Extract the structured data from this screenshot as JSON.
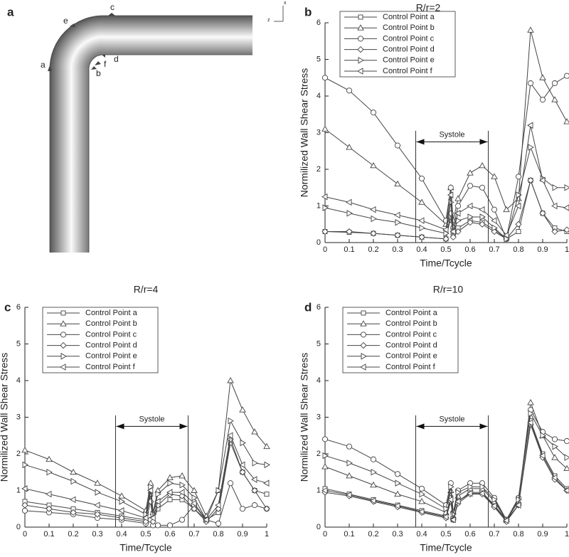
{
  "diagram": {
    "panel": "a",
    "points": [
      "a",
      "b",
      "c",
      "d",
      "e",
      "f"
    ],
    "axes": [
      "z",
      "x"
    ]
  },
  "chart_data": [
    {
      "type": "line",
      "panel": "b",
      "title": "R/r=2",
      "x_label": "Time/Tcycle",
      "y_label": "Normilized Wall Shear Stress",
      "xlim": [
        0,
        1
      ],
      "ylim": [
        0,
        6
      ],
      "xticks": [
        0,
        0.1,
        0.2,
        0.3,
        0.4,
        0.5,
        0.6,
        0.7,
        0.8,
        0.9,
        1
      ],
      "yticks": [
        0,
        1,
        2,
        3,
        4,
        5,
        6
      ],
      "legend": "upper left",
      "annotation": {
        "text": "Systole",
        "x0": 0.375,
        "x1": 0.675,
        "top": 3.05,
        "arrow_y": 2.75
      },
      "x": [
        0,
        0.1,
        0.2,
        0.3,
        0.4,
        0.5,
        0.52,
        0.53,
        0.55,
        0.6,
        0.65,
        0.7,
        0.75,
        0.8,
        0.85,
        0.9,
        0.95,
        1
      ],
      "series": [
        {
          "name": "Control Point a",
          "marker": "square",
          "color": "#444",
          "values": [
            0.3,
            0.28,
            0.25,
            0.2,
            0.15,
            0.1,
            0.7,
            0.2,
            0.4,
            0.6,
            0.55,
            0.35,
            0.1,
            0.3,
            1.7,
            0.8,
            0.4,
            0.3
          ]
        },
        {
          "name": "Control Point b",
          "marker": "triangle-up",
          "color": "#444",
          "values": [
            3.1,
            2.6,
            2.1,
            1.6,
            1.1,
            0.5,
            1.5,
            0.6,
            1.2,
            1.9,
            2.1,
            1.8,
            0.9,
            1.2,
            5.8,
            4.5,
            3.9,
            3.3
          ]
        },
        {
          "name": "Control Point c",
          "marker": "circle",
          "color": "#444",
          "values": [
            4.5,
            4.15,
            3.55,
            2.65,
            1.75,
            0.6,
            1.5,
            0.4,
            1.0,
            1.55,
            1.5,
            0.9,
            0.1,
            1.8,
            4.35,
            3.9,
            4.35,
            4.55
          ]
        },
        {
          "name": "Control Point d",
          "marker": "diamond",
          "color": "#444",
          "values": [
            0.3,
            0.3,
            0.25,
            0.2,
            0.15,
            0.1,
            0.8,
            0.15,
            0.3,
            0.55,
            0.5,
            0.3,
            0.1,
            0.5,
            1.7,
            0.8,
            0.3,
            0.35
          ]
        },
        {
          "name": "Control Point e",
          "marker": "triangle-right",
          "color": "#444",
          "values": [
            0.95,
            0.8,
            0.65,
            0.55,
            0.4,
            0.25,
            1.1,
            0.3,
            0.6,
            0.7,
            0.7,
            0.4,
            0.1,
            1.3,
            2.6,
            1.75,
            1.5,
            1.5
          ]
        },
        {
          "name": "Control Point f",
          "marker": "triangle-left",
          "color": "#444",
          "values": [
            1.25,
            1.1,
            0.9,
            0.75,
            0.6,
            0.35,
            1.3,
            0.3,
            0.8,
            1.0,
            0.9,
            0.6,
            0.2,
            1.0,
            3.2,
            1.7,
            1.0,
            0.95
          ]
        }
      ]
    },
    {
      "type": "line",
      "panel": "c",
      "title": "R/r=4",
      "x_label": "Time/Tcycle",
      "y_label": "Normilized Wall Shear Stress",
      "xlim": [
        0,
        1
      ],
      "ylim": [
        0,
        6
      ],
      "xticks": [
        0,
        0.1,
        0.2,
        0.3,
        0.4,
        0.5,
        0.6,
        0.7,
        0.8,
        0.9,
        1
      ],
      "yticks": [
        0,
        1,
        2,
        3,
        4,
        5,
        6
      ],
      "legend": "upper left",
      "annotation": {
        "text": "Systole",
        "x0": 0.375,
        "x1": 0.675,
        "top": 3.05,
        "arrow_y": 2.75
      },
      "x": [
        0,
        0.1,
        0.2,
        0.3,
        0.4,
        0.5,
        0.52,
        0.53,
        0.55,
        0.6,
        0.65,
        0.7,
        0.75,
        0.8,
        0.85,
        0.9,
        0.95,
        1
      ],
      "series": [
        {
          "name": "Control Point a",
          "marker": "square",
          "color": "#444",
          "values": [
            0.7,
            0.6,
            0.5,
            0.4,
            0.3,
            0.2,
            0.9,
            0.2,
            0.5,
            0.75,
            0.75,
            0.5,
            0.2,
            0.4,
            2.3,
            1.5,
            1.0,
            0.9
          ]
        },
        {
          "name": "Control Point b",
          "marker": "triangle-up",
          "color": "#444",
          "values": [
            2.1,
            1.85,
            1.5,
            1.2,
            0.85,
            0.45,
            1.2,
            0.4,
            1.0,
            1.35,
            1.4,
            1.0,
            0.3,
            1.0,
            4.0,
            3.2,
            2.6,
            2.2
          ]
        },
        {
          "name": "Control Point c",
          "marker": "circle",
          "color": "#444",
          "values": [
            0.45,
            0.4,
            0.35,
            0.25,
            0.2,
            0.1,
            0.2,
            0.05,
            0.05,
            0.05,
            0.2,
            0.6,
            0.2,
            0.1,
            1.2,
            0.5,
            0.6,
            0.5
          ]
        },
        {
          "name": "Control Point d",
          "marker": "diamond",
          "color": "#444",
          "values": [
            0.6,
            0.5,
            0.4,
            0.35,
            0.25,
            0.15,
            0.7,
            0.15,
            0.6,
            0.9,
            0.85,
            0.5,
            0.15,
            0.5,
            2.4,
            1.5,
            1.0,
            0.5
          ]
        },
        {
          "name": "Control Point e",
          "marker": "triangle-right",
          "color": "#444",
          "values": [
            1.7,
            1.5,
            1.25,
            0.95,
            0.7,
            0.35,
            1.1,
            0.35,
            0.9,
            1.2,
            1.15,
            0.8,
            0.2,
            1.0,
            2.9,
            2.3,
            1.75,
            1.7
          ]
        },
        {
          "name": "Control Point f",
          "marker": "triangle-left",
          "color": "#444",
          "values": [
            1.05,
            0.9,
            0.75,
            0.6,
            0.45,
            0.25,
            1.0,
            0.25,
            0.7,
            0.95,
            0.95,
            0.65,
            0.2,
            0.6,
            2.5,
            1.7,
            1.3,
            1.2
          ]
        }
      ]
    },
    {
      "type": "line",
      "panel": "d",
      "title": "R/r=10",
      "x_label": "Time/Tcycle",
      "y_label": "Normilized Wall Shear Stress",
      "xlim": [
        0,
        1
      ],
      "ylim": [
        0,
        6
      ],
      "xticks": [
        0,
        0.1,
        0.2,
        0.3,
        0.4,
        0.5,
        0.6,
        0.7,
        0.8,
        0.9,
        1
      ],
      "yticks": [
        0,
        1,
        2,
        3,
        4,
        5,
        6
      ],
      "legend": "upper left",
      "annotation": {
        "text": "Systole",
        "x0": 0.375,
        "x1": 0.675,
        "top": 3.05,
        "arrow_y": 2.75
      },
      "x": [
        0,
        0.1,
        0.2,
        0.3,
        0.4,
        0.5,
        0.52,
        0.53,
        0.55,
        0.6,
        0.65,
        0.7,
        0.75,
        0.8,
        0.85,
        0.9,
        0.95,
        1
      ],
      "series": [
        {
          "name": "Control Point a",
          "marker": "square",
          "color": "#444",
          "values": [
            1.05,
            0.9,
            0.75,
            0.6,
            0.45,
            0.3,
            0.8,
            0.2,
            0.7,
            0.95,
            0.95,
            0.6,
            0.2,
            0.6,
            2.9,
            2.0,
            1.4,
            1.05
          ]
        },
        {
          "name": "Control Point b",
          "marker": "triangle-up",
          "color": "#444",
          "values": [
            1.65,
            1.4,
            1.15,
            0.9,
            0.7,
            0.4,
            1.0,
            0.3,
            0.85,
            1.05,
            1.05,
            0.7,
            0.2,
            0.7,
            3.4,
            2.5,
            1.9,
            1.6
          ]
        },
        {
          "name": "Control Point c",
          "marker": "circle",
          "color": "#444",
          "values": [
            2.4,
            2.2,
            1.85,
            1.45,
            1.05,
            0.6,
            1.2,
            0.4,
            1.0,
            1.2,
            1.2,
            0.8,
            0.2,
            0.8,
            3.2,
            2.6,
            2.4,
            2.35
          ]
        },
        {
          "name": "Control Point d",
          "marker": "diamond",
          "color": "#444",
          "values": [
            0.95,
            0.85,
            0.7,
            0.55,
            0.4,
            0.25,
            0.7,
            0.2,
            0.65,
            0.9,
            0.9,
            0.55,
            0.15,
            0.6,
            2.8,
            1.9,
            1.3,
            1.0
          ]
        },
        {
          "name": "Control Point e",
          "marker": "triangle-right",
          "color": "#444",
          "values": [
            1.95,
            1.75,
            1.5,
            1.2,
            0.9,
            0.5,
            1.1,
            0.35,
            0.95,
            1.1,
            1.1,
            0.75,
            0.2,
            0.75,
            3.1,
            2.5,
            2.2,
            1.9
          ]
        },
        {
          "name": "Control Point f",
          "marker": "triangle-left",
          "color": "#444",
          "values": [
            1.0,
            0.88,
            0.72,
            0.58,
            0.42,
            0.28,
            0.75,
            0.2,
            0.7,
            0.92,
            0.92,
            0.58,
            0.18,
            0.6,
            2.85,
            1.95,
            1.35,
            1.0
          ]
        }
      ]
    }
  ]
}
